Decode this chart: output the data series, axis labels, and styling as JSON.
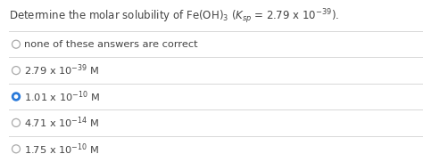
{
  "title": "Determine the molar solubility of Fe(OH)$_3$ ($K_{sp}$ = 2.79 x 10$^{-39}$).",
  "options": [
    {
      "text": "none of these answers are correct",
      "selected": false
    },
    {
      "text": "2.79 x 10$^{-39}$ M",
      "selected": false
    },
    {
      "text": "1.01 x 10$^{-10}$ M",
      "selected": true
    },
    {
      "text": "4.71 x 10$^{-14}$ M",
      "selected": false
    },
    {
      "text": "1.75 x 10$^{-10}$ M",
      "selected": false
    }
  ],
  "bg_color": "#ffffff",
  "text_color": "#444444",
  "circle_edge_color": "#aaaaaa",
  "circle_filled_color": "#2979d9",
  "circle_inner_color": "#ffffff",
  "divider_color": "#d8d8d8",
  "title_fontsize": 8.5,
  "option_fontsize": 8.2,
  "fig_width": 4.74,
  "fig_height": 1.82,
  "dpi": 100
}
